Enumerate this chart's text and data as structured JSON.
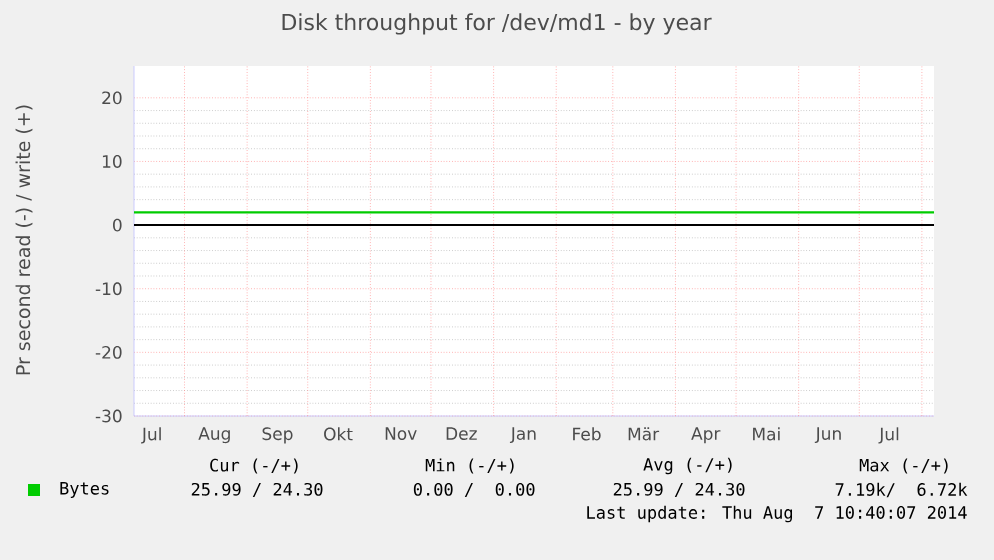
{
  "chart_data": {
    "type": "line",
    "title": "Disk throughput for /dev/md1 - by year",
    "ylabel": "Pr second read (-) / write (+)",
    "xlim": [
      "2013-07-07",
      "2014-08-07"
    ],
    "ylim": [
      -30,
      25
    ],
    "yticks": [
      -30,
      -20,
      -10,
      0,
      10,
      20
    ],
    "xticks": [
      {
        "value": "2013-07-16",
        "label": "Jul"
      },
      {
        "value": "2013-08-01",
        "label": null
      },
      {
        "value": "2013-08-16",
        "label": "Aug"
      },
      {
        "value": "2013-09-01",
        "label": null
      },
      {
        "value": "2013-09-16",
        "label": "Sep"
      },
      {
        "value": "2013-10-01",
        "label": null
      },
      {
        "value": "2013-10-16",
        "label": "Okt"
      },
      {
        "value": "2013-11-01",
        "label": null
      },
      {
        "value": "2013-11-16",
        "label": "Nov"
      },
      {
        "value": "2013-12-01",
        "label": null
      },
      {
        "value": "2013-12-16",
        "label": "Dez"
      },
      {
        "value": "2014-01-01",
        "label": null
      },
      {
        "value": "2014-01-16",
        "label": "Jan"
      },
      {
        "value": "2014-02-01",
        "label": null
      },
      {
        "value": "2014-02-16",
        "label": "Feb"
      },
      {
        "value": "2014-03-01",
        "label": null
      },
      {
        "value": "2014-03-16",
        "label": "Mär"
      },
      {
        "value": "2014-04-01",
        "label": null
      },
      {
        "value": "2014-04-16",
        "label": "Apr"
      },
      {
        "value": "2014-05-01",
        "label": null
      },
      {
        "value": "2014-05-16",
        "label": "Mai"
      },
      {
        "value": "2014-06-01",
        "label": null
      },
      {
        "value": "2014-06-16",
        "label": "Jun"
      },
      {
        "value": "2014-07-01",
        "label": null
      },
      {
        "value": "2014-07-16",
        "label": "Jul"
      },
      {
        "value": "2014-08-01",
        "label": null
      }
    ],
    "series": [
      {
        "name": "Bytes",
        "color": "#00cc00",
        "x": [
          "2013-07-07",
          "2014-08-07"
        ],
        "values": [
          2,
          2
        ]
      }
    ],
    "ref_lines": [
      {
        "axis": "y",
        "value": 0,
        "color": "#000000"
      }
    ],
    "grid": true,
    "legend": "bottom left",
    "annotations": [
      "Cur (-/+)",
      "Min (-/+)",
      "Avg (-/+)",
      "Max (-/+)",
      "25.99 / 24.30",
      "0.00 /  0.00",
      "25.99 / 24.30",
      "7.19k/  6.72k",
      "Last update: Thu Aug  7 10:40:07 2014"
    ]
  }
}
